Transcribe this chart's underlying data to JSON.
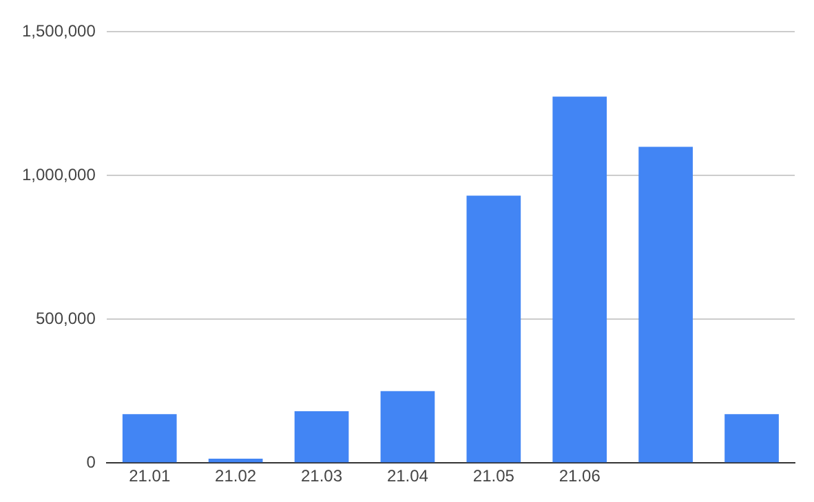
{
  "chart_data": {
    "type": "bar",
    "categories": [
      "21.01",
      "21.02",
      "21.03",
      "21.04",
      "21.05",
      "21.06",
      null,
      null
    ],
    "values": [
      170000,
      15000,
      180000,
      250000,
      930000,
      1275000,
      1100000,
      170000
    ],
    "color": "#4285f4",
    "ylim": [
      0,
      1500000
    ],
    "yticks": [
      0,
      {
        "value": 500000,
        "label": "500,000"
      },
      {
        "value": 1000000,
        "label": "1,000,000"
      },
      {
        "value": 1500000,
        "label": "1,500,000"
      }
    ],
    "grid": "y",
    "legend": false
  }
}
